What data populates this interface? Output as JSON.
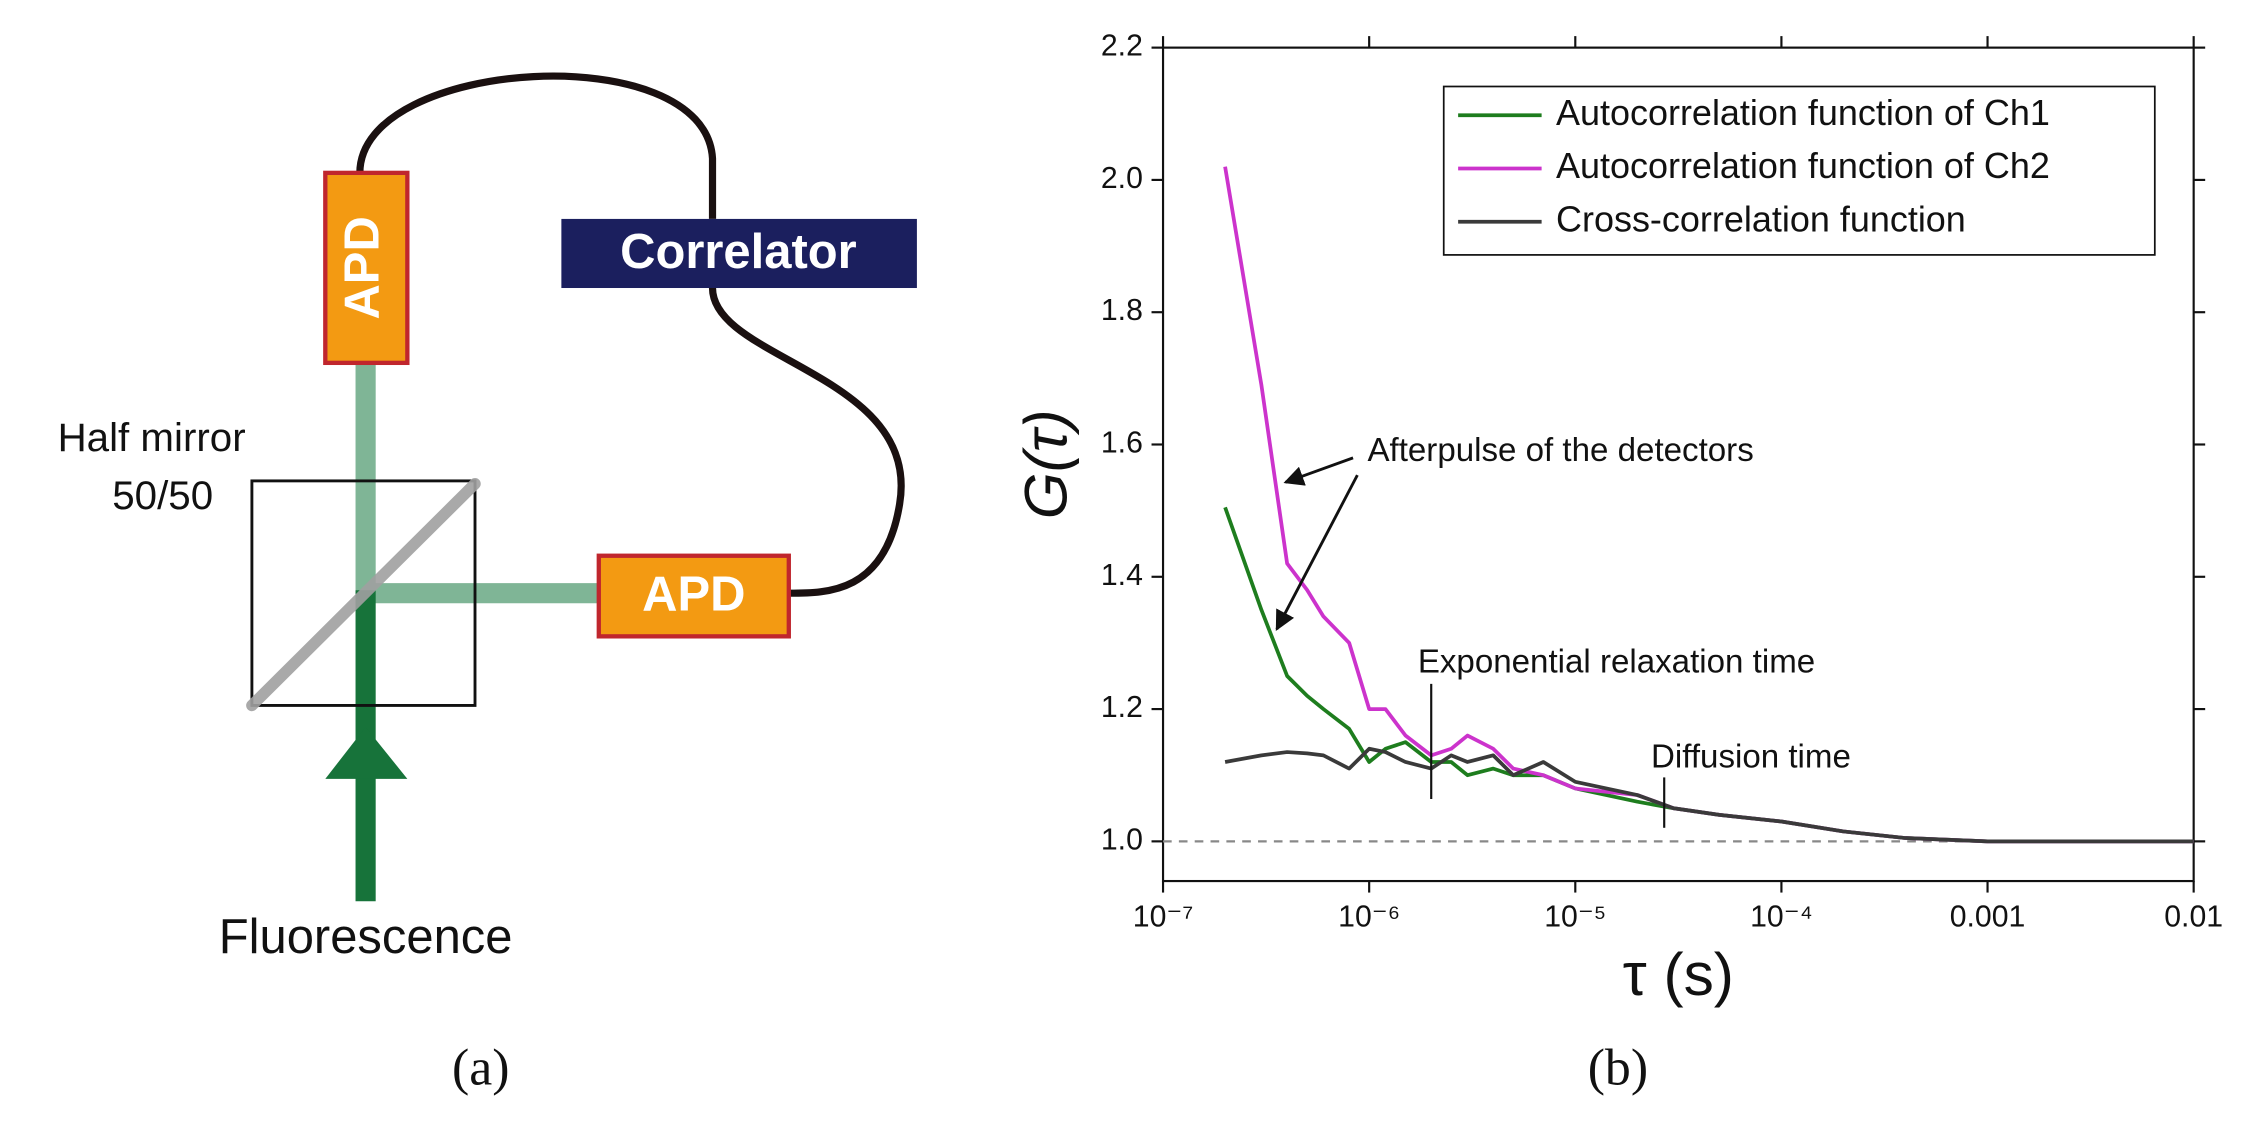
{
  "diagram": {
    "top_detector": "APD",
    "correlator": "Correlator",
    "right_detector": "APD",
    "mirror_label": "Half mirror",
    "mirror_ratio": "50/50",
    "input_label": "Fluorescence",
    "panel_label": "(a)"
  },
  "chart_data": {
    "type": "line",
    "panel_label": "(b)",
    "xlabel": "τ (s)",
    "ylabel": "G(τ)",
    "xscale": "log",
    "xlim": [
      1e-07,
      0.01
    ],
    "xticks": [
      {
        "value": 1e-07,
        "label": "10⁻⁷"
      },
      {
        "value": 1e-06,
        "label": "10⁻⁶"
      },
      {
        "value": 1e-05,
        "label": "10⁻⁵"
      },
      {
        "value": 0.0001,
        "label": "10⁻⁴"
      },
      0.001,
      0.01
    ],
    "ylim": [
      0.94,
      2.2
    ],
    "yticks": [
      {
        "value": 1,
        "label": "1.0"
      },
      1.2,
      1.4,
      1.6,
      1.8,
      {
        "value": 2,
        "label": "2.0"
      },
      2.2
    ],
    "hline": 1,
    "legend": "upper right",
    "x": [
      2e-07,
      3e-07,
      4e-07,
      5e-07,
      6e-07,
      8e-07,
      1e-06,
      1.2e-06,
      1.5e-06,
      2e-06,
      2.5e-06,
      3e-06,
      4e-06,
      5e-06,
      7e-06,
      1e-05,
      2e-05,
      3e-05,
      5e-05,
      0.0001,
      0.0002,
      0.0004,
      0.001,
      0.003,
      0.01
    ],
    "series": [
      {
        "name": "Autocorrelation function of Ch1",
        "color": "#1e7d1e",
        "values": [
          1.505,
          1.35,
          1.25,
          1.22,
          1.2,
          1.17,
          1.12,
          1.14,
          1.15,
          1.12,
          1.12,
          1.1,
          1.11,
          1.1,
          1.1,
          1.08,
          1.06,
          1.05,
          1.04,
          1.03,
          1.015,
          1.005,
          1,
          1,
          1
        ]
      },
      {
        "name": "Autocorrelation function of Ch2",
        "color": "#cc33cc",
        "values": [
          2.02,
          1.69,
          1.42,
          1.38,
          1.34,
          1.3,
          1.2,
          1.2,
          1.16,
          1.13,
          1.14,
          1.16,
          1.14,
          1.11,
          1.1,
          1.08,
          1.07,
          1.05,
          1.04,
          1.03,
          1.015,
          1.005,
          1,
          1,
          1
        ]
      },
      {
        "name": "Cross-correlation function",
        "color": "#3a3a3a",
        "values": [
          1.12,
          1.13,
          1.135,
          1.133,
          1.13,
          1.11,
          1.14,
          1.135,
          1.12,
          1.11,
          1.13,
          1.12,
          1.13,
          1.1,
          1.12,
          1.09,
          1.07,
          1.05,
          1.04,
          1.03,
          1.015,
          1.005,
          1,
          1,
          1
        ]
      }
    ],
    "annotations": [
      {
        "text": "Afterpulse of the detectors"
      },
      {
        "text": "Exponential relaxation time",
        "x": 2e-06
      },
      {
        "text": "Diffusion time",
        "x": 2.7e-05
      }
    ]
  }
}
